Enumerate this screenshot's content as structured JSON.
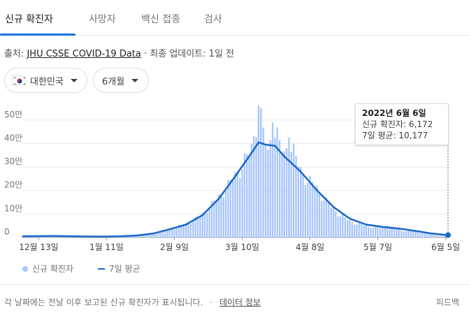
{
  "tabs": [
    {
      "label": "신규 확진자",
      "active": true
    },
    {
      "label": "사망자",
      "active": false
    },
    {
      "label": "백신 접종",
      "active": false
    },
    {
      "label": "검사",
      "active": false
    }
  ],
  "source": {
    "prefix": "출처:",
    "link": "JHU CSSE COVID-19 Data",
    "suffix": "· 최종 업데이트: 1일 전"
  },
  "filters": {
    "region": "대한민국",
    "period": "6개월"
  },
  "tooltip": {
    "date": "2022년 6월 6일",
    "new_cases": "신규 확진자: 6,172",
    "avg": "7일 평균: 10,177"
  },
  "legend": {
    "bars": "신규 확진자",
    "line": "7일 평균"
  },
  "footer": {
    "note": "각 날짜에는 전날 이후 보고된 신규 확진자가 표시됩니다.",
    "separator": "·",
    "link": "데이터 정보",
    "feedback": "피드백"
  },
  "colors": {
    "bar": "#a8c7fa",
    "line": "#1a66c8",
    "accent": "#1a73e8"
  },
  "chart_data": {
    "type": "bar",
    "title": "",
    "xlabel": "",
    "ylabel": "",
    "ylim": [
      0,
      550000
    ],
    "yticks": [
      0,
      100000,
      200000,
      300000,
      400000,
      500000
    ],
    "ytick_labels": [
      "0",
      "10만",
      "20만",
      "30만",
      "40만",
      "50만"
    ],
    "xticks": [
      "2021-12-13",
      "2022-01-11",
      "2022-02-09",
      "2022-03-10",
      "2022-04-08",
      "2022-05-07",
      "2022-06-05"
    ],
    "xtick_labels": [
      "12월 13일",
      "1월 11일",
      "2월 9일",
      "3월 10일",
      "4월 8일",
      "5월 7일",
      "6월 5일"
    ],
    "x_range": [
      "2021-12-06",
      "2022-06-06"
    ],
    "selected": {
      "date": "2022-06-06",
      "new_cases": 6172,
      "avg": 10177
    },
    "series": [
      {
        "name": "신규 확진자",
        "type": "bar",
        "points": [
          [
            "2021-12-06",
            4300
          ],
          [
            "2021-12-13",
            7000
          ],
          [
            "2021-12-20",
            6500
          ],
          [
            "2021-12-27",
            4500
          ],
          [
            "2022-01-03",
            3500
          ],
          [
            "2022-01-10",
            4000
          ],
          [
            "2022-01-17",
            5500
          ],
          [
            "2022-01-24",
            9000
          ],
          [
            "2022-01-31",
            18000
          ],
          [
            "2022-02-07",
            37000
          ],
          [
            "2022-02-14",
            57000
          ],
          [
            "2022-02-21",
            100000
          ],
          [
            "2022-02-28",
            175000
          ],
          [
            "2022-03-07",
            265000
          ],
          [
            "2022-03-14",
            380000
          ],
          [
            "2022-03-17",
            562000
          ],
          [
            "2022-03-21",
            355000
          ],
          [
            "2022-03-23",
            490000
          ],
          [
            "2022-03-28",
            350000
          ],
          [
            "2022-03-30",
            425000
          ],
          [
            "2022-04-04",
            285000
          ],
          [
            "2022-04-11",
            210000
          ],
          [
            "2022-04-18",
            120000
          ],
          [
            "2022-04-25",
            70000
          ],
          [
            "2022-05-02",
            50000
          ],
          [
            "2022-05-09",
            40000
          ],
          [
            "2022-05-11",
            50000
          ],
          [
            "2022-05-16",
            33000
          ],
          [
            "2022-05-23",
            25000
          ],
          [
            "2022-05-30",
            14000
          ],
          [
            "2022-06-06",
            6172
          ]
        ]
      },
      {
        "name": "7일 평균",
        "type": "line",
        "points": [
          [
            "2021-12-06",
            5000
          ],
          [
            "2021-12-13",
            6000
          ],
          [
            "2021-12-20",
            6200
          ],
          [
            "2021-12-27",
            5500
          ],
          [
            "2022-01-03",
            4200
          ],
          [
            "2022-01-10",
            3800
          ],
          [
            "2022-01-17",
            5000
          ],
          [
            "2022-01-24",
            8500
          ],
          [
            "2022-01-31",
            17000
          ],
          [
            "2022-02-07",
            35000
          ],
          [
            "2022-02-14",
            55000
          ],
          [
            "2022-02-21",
            95000
          ],
          [
            "2022-02-28",
            165000
          ],
          [
            "2022-03-07",
            260000
          ],
          [
            "2022-03-14",
            360000
          ],
          [
            "2022-03-17",
            405000
          ],
          [
            "2022-03-20",
            395000
          ],
          [
            "2022-03-24",
            390000
          ],
          [
            "2022-03-28",
            345000
          ],
          [
            "2022-04-04",
            280000
          ],
          [
            "2022-04-11",
            200000
          ],
          [
            "2022-04-18",
            130000
          ],
          [
            "2022-04-25",
            80000
          ],
          [
            "2022-05-02",
            55000
          ],
          [
            "2022-05-09",
            45000
          ],
          [
            "2022-05-16",
            38000
          ],
          [
            "2022-05-23",
            28000
          ],
          [
            "2022-05-30",
            17000
          ],
          [
            "2022-06-06",
            10177
          ]
        ]
      }
    ]
  }
}
